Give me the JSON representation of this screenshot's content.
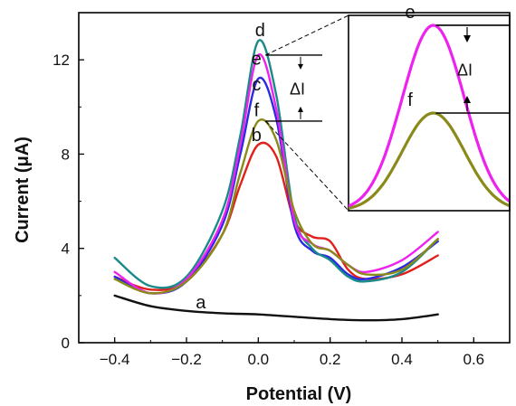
{
  "chart_data": {
    "type": "line",
    "xlabel": "Potential (V)",
    "ylabel": "Current (μA)",
    "xlim": [
      -0.5,
      0.7
    ],
    "ylim": [
      0,
      14
    ],
    "x_ticks": [
      "−0.4",
      "−0.2",
      "0.0",
      "0.2",
      "0.4",
      "0.6"
    ],
    "y_ticks": [
      "0",
      "4",
      "8",
      "12"
    ],
    "grid": false,
    "annotation": "ΔI",
    "inset": {
      "shows": [
        "e",
        "f"
      ],
      "annotation": "ΔI"
    },
    "series": [
      {
        "name": "a",
        "color": "#111111",
        "x": [
          -0.4,
          -0.3,
          -0.2,
          -0.1,
          0.0,
          0.1,
          0.2,
          0.3,
          0.4,
          0.5
        ],
        "y": [
          2.0,
          1.55,
          1.35,
          1.25,
          1.2,
          1.1,
          1.0,
          0.95,
          1.0,
          1.2
        ]
      },
      {
        "name": "b",
        "color": "#e0201c",
        "x": [
          -0.4,
          -0.3,
          -0.2,
          -0.1,
          -0.05,
          0.0,
          0.05,
          0.1,
          0.15,
          0.2,
          0.25,
          0.3,
          0.4,
          0.5
        ],
        "y": [
          2.8,
          2.25,
          2.6,
          4.6,
          6.7,
          8.4,
          7.9,
          5.2,
          4.5,
          4.3,
          3.1,
          2.7,
          2.9,
          3.7
        ]
      },
      {
        "name": "c",
        "color": "#2a2ae0",
        "x": [
          -0.4,
          -0.3,
          -0.2,
          -0.1,
          -0.05,
          0.0,
          0.05,
          0.1,
          0.15,
          0.2,
          0.25,
          0.3,
          0.4,
          0.5
        ],
        "y": [
          2.8,
          2.1,
          2.6,
          5.0,
          8.0,
          11.2,
          9.5,
          5.0,
          3.9,
          3.6,
          2.9,
          2.7,
          3.2,
          4.3
        ]
      },
      {
        "name": "d",
        "color": "#1a8a8a",
        "x": [
          -0.4,
          -0.3,
          -0.2,
          -0.1,
          -0.05,
          0.0,
          0.05,
          0.1,
          0.15,
          0.2,
          0.25,
          0.3,
          0.4,
          0.5
        ],
        "y": [
          3.6,
          2.4,
          2.8,
          5.6,
          8.8,
          12.8,
          10.5,
          5.4,
          4.0,
          3.5,
          2.8,
          2.6,
          3.0,
          4.4
        ]
      },
      {
        "name": "e",
        "color": "#ee22ee",
        "x": [
          -0.4,
          -0.3,
          -0.2,
          -0.1,
          -0.05,
          0.0,
          0.05,
          0.1,
          0.15,
          0.2,
          0.25,
          0.3,
          0.4,
          0.5
        ],
        "y": [
          3.0,
          2.1,
          2.7,
          5.2,
          8.4,
          12.2,
          9.9,
          5.2,
          4.2,
          3.9,
          3.3,
          3.0,
          3.5,
          4.7
        ]
      },
      {
        "name": "f",
        "color": "#8a8a1a",
        "x": [
          -0.4,
          -0.3,
          -0.2,
          -0.1,
          -0.05,
          0.0,
          0.05,
          0.1,
          0.15,
          0.2,
          0.25,
          0.3,
          0.4,
          0.5
        ],
        "y": [
          2.7,
          2.1,
          2.6,
          4.6,
          7.2,
          9.4,
          8.6,
          5.6,
          4.2,
          3.9,
          3.3,
          2.9,
          3.1,
          4.4
        ]
      }
    ]
  }
}
